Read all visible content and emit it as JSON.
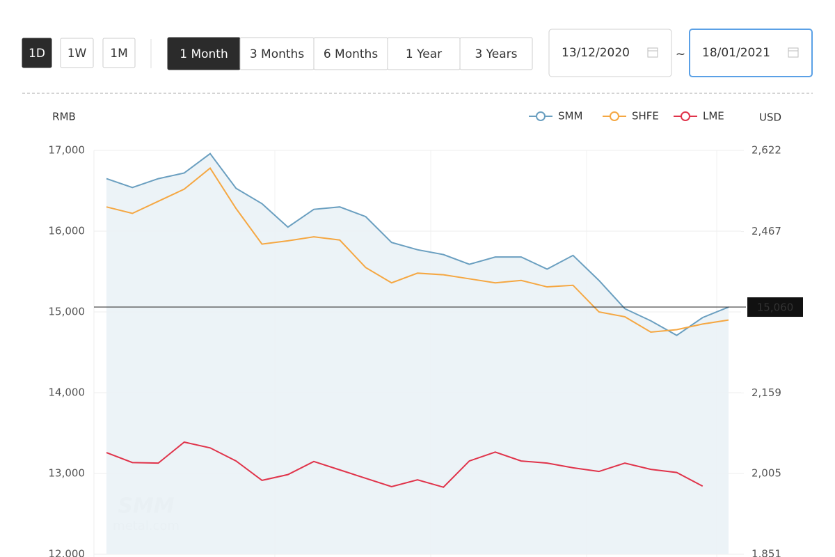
{
  "toolbar": {
    "intervals": [
      "1D",
      "1W",
      "1M"
    ],
    "ranges": [
      "1 Month",
      "3 Months",
      "6 Months",
      "1 Year",
      "3 Years"
    ],
    "date_from": "13/12/2020",
    "separator": "~",
    "date_to": "18/01/2021"
  },
  "chart_data": {
    "type": "line",
    "ylabel": "RMB",
    "y2label": "USD",
    "categories": [
      null,
      null,
      null,
      null,
      null,
      null,
      null,
      null,
      null,
      null,
      null,
      null,
      null,
      null,
      null,
      null,
      null,
      null,
      null,
      null,
      null,
      null,
      null,
      null,
      null
    ],
    "series": [
      {
        "name": "SMM",
        "color": "#6a9fc0",
        "area": true,
        "values": [
          16650,
          16540,
          16650,
          16720,
          16960,
          16530,
          16340,
          16050,
          16270,
          16300,
          16180,
          15860,
          15770,
          15710,
          15590,
          15680,
          15680,
          15530,
          15700,
          15390,
          15040,
          14890,
          14710,
          14930,
          15060
        ]
      },
      {
        "name": "SHFE",
        "color": "#f5a742",
        "values": [
          16300,
          16220,
          16370,
          16520,
          16780,
          16280,
          15840,
          15880,
          15930,
          15890,
          15550,
          15360,
          15480,
          15460,
          15410,
          15360,
          15390,
          15310,
          15330,
          15000,
          14940,
          14750,
          14780,
          14850,
          14900
        ]
      },
      {
        "name": "LME",
        "color": "#e0334a",
        "axis": "y2",
        "values": [
          2045,
          2026,
          2025,
          2065,
          2054,
          2029,
          1992,
          2003,
          2028,
          2012,
          1996,
          1980,
          1993,
          1979,
          2029,
          2046,
          2029,
          2025,
          2016,
          2009,
          2025,
          2013,
          2007,
          1981,
          null
        ]
      }
    ],
    "ylim": [
      12000,
      17000
    ],
    "yticks": [
      {
        "value": 12000,
        "label": "12,000"
      },
      {
        "value": 13000,
        "label": "13,000"
      },
      {
        "value": 14000,
        "label": "14,000"
      },
      {
        "value": 15000,
        "label": "15,000"
      },
      {
        "value": 16000,
        "label": "16,000"
      },
      {
        "value": 17000,
        "label": "17,000"
      }
    ],
    "y2lim": [
      1851,
      2622
    ],
    "y2ticks": [
      {
        "value": 1851,
        "label": "1,851"
      },
      {
        "value": 2005,
        "label": "2,005"
      },
      {
        "value": 2159,
        "label": "2,159"
      },
      {
        "value": 2467,
        "label": "2,467"
      },
      {
        "value": 2622,
        "label": "2,622"
      }
    ],
    "crosshair": {
      "value": 15060,
      "label": "15,060"
    },
    "watermark": [
      "SMM",
      "metal.com"
    ],
    "grid": true,
    "legend": "top-right"
  }
}
